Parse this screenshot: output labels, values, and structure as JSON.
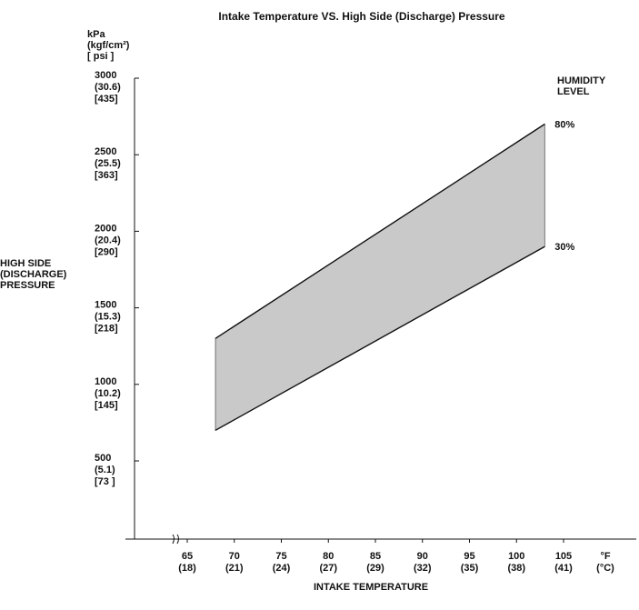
{
  "chart_data": {
    "type": "area",
    "title": "Intake Temperature VS. High Side (Discharge) Pressure",
    "xlabel": "INTAKE TEMPERATURE",
    "ylabel": [
      "HIGH SIDE",
      "(DISCHARGE)",
      "PRESSURE"
    ],
    "y_units": [
      "kPa",
      "(kgf/cm²)",
      "[ psi ]"
    ],
    "x_units": [
      "°F",
      "(°C)"
    ],
    "legend_title": [
      "HUMIDITY",
      "LEVEL"
    ],
    "xlim": [
      60,
      110
    ],
    "ylim": [
      0,
      3000
    ],
    "x_ticks": [
      {
        "f": 65,
        "c": "(18)"
      },
      {
        "f": 70,
        "c": "(21)"
      },
      {
        "f": 75,
        "c": "(24)"
      },
      {
        "f": 80,
        "c": "(27)"
      },
      {
        "f": 85,
        "c": "(29)"
      },
      {
        "f": 90,
        "c": "(32)"
      },
      {
        "f": 95,
        "c": "(35)"
      },
      {
        "f": 100,
        "c": "(38)"
      },
      {
        "f": 105,
        "c": "(41)"
      }
    ],
    "y_ticks": [
      {
        "value": 3000,
        "kgf": "(30.6)",
        "psi": "[435]"
      },
      {
        "value": 2500,
        "kgf": "(25.5)",
        "psi": "[363]"
      },
      {
        "value": 2000,
        "kgf": "(20.4)",
        "psi": "[290]"
      },
      {
        "value": 1500,
        "kgf": "(15.3)",
        "psi": "[218]"
      },
      {
        "value": 1000,
        "kgf": "(10.2)",
        "psi": "[145]"
      },
      {
        "value": 500,
        "kgf": "(5.1)",
        "psi": "[73 ]"
      }
    ],
    "series": [
      {
        "name": "80%",
        "x": [
          68,
          103
        ],
        "y": [
          1300,
          2700
        ]
      },
      {
        "name": "30%",
        "x": [
          68,
          103
        ],
        "y": [
          700,
          1900
        ]
      }
    ],
    "fill_color": "#c9c9c9",
    "line_color": "#111111",
    "grid": false
  }
}
